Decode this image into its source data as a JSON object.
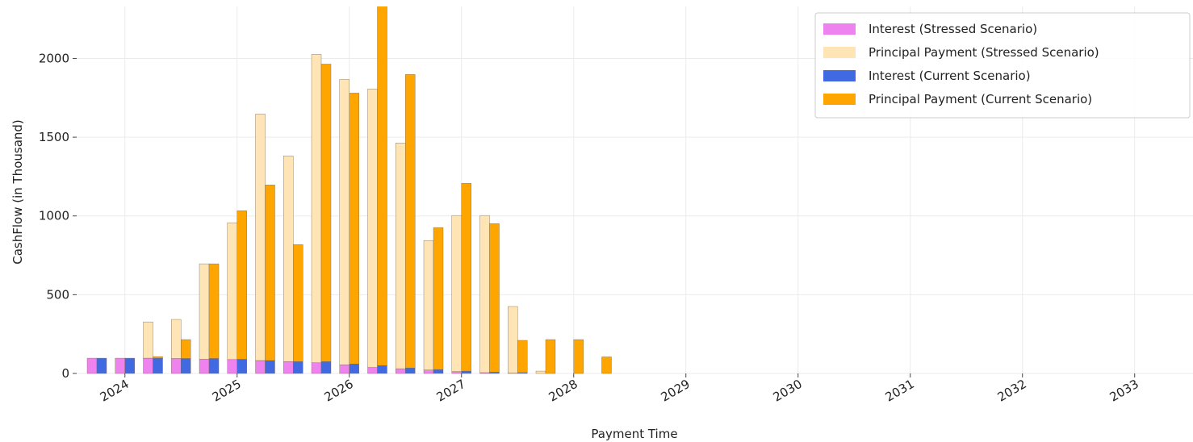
{
  "chart_data": {
    "type": "bar",
    "xlabel": "Payment Time",
    "ylabel": "CashFlow (in Thousand)",
    "x": [
      2023.75,
      2024.0,
      2024.25,
      2024.5,
      2024.75,
      2025.0,
      2025.25,
      2025.5,
      2025.75,
      2026.0,
      2026.25,
      2026.5,
      2026.75,
      2027.0,
      2027.25,
      2027.5,
      2027.75,
      2028.0,
      2028.25
    ],
    "series": [
      {
        "name": "Interest (Stressed Scenario)",
        "color": "#ee82ee",
        "values": [
          97,
          97,
          97,
          95,
          90,
          88,
          82,
          75,
          68,
          55,
          38,
          30,
          22,
          12,
          5,
          2,
          0,
          0,
          0
        ]
      },
      {
        "name": "Principal Payment (Stressed Scenario)",
        "color": "#ffe4b5",
        "values": [
          0,
          0,
          230,
          248,
          606,
          869,
          1565,
          1306,
          1958,
          1812,
          1768,
          1433,
          822,
          991,
          998,
          423,
          15,
          0,
          0
        ]
      },
      {
        "name": "Interest (Current Scenario)",
        "color": "#4169e1",
        "values": [
          97,
          97,
          97,
          95,
          95,
          90,
          82,
          75,
          75,
          60,
          50,
          35,
          25,
          15,
          8,
          5,
          0,
          0,
          0
        ]
      },
      {
        "name": "Principal Payment (Current Scenario)",
        "color": "#ffa500",
        "values": [
          0,
          0,
          10,
          120,
          601,
          943,
          1115,
          743,
          1889,
          1720,
          2300,
          1863,
          901,
          1192,
          943,
          205,
          215,
          215,
          105
        ]
      }
    ],
    "xlim": [
      2023.57,
      2033.52
    ],
    "xticks": [
      2024,
      2025,
      2026,
      2027,
      2028,
      2029,
      2030,
      2031,
      2032,
      2033
    ],
    "ylim": [
      0,
      2330
    ],
    "yticks": [
      0,
      500,
      1000,
      1500,
      2000
    ],
    "grid": true,
    "legend": "upper right"
  }
}
